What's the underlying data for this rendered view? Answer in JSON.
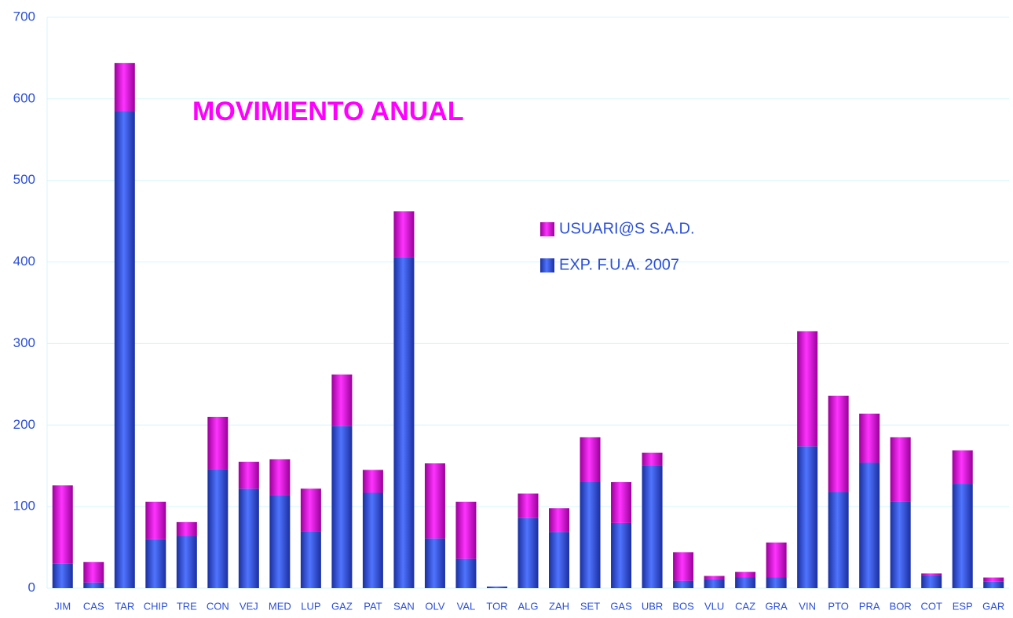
{
  "chart_data": {
    "type": "stacked_bar",
    "title": "MOVIMIENTO ANUAL",
    "categories": [
      "JIM",
      "CAS",
      "TAR",
      "CHIP",
      "TRE",
      "CON",
      "VEJ",
      "MED",
      "LUP",
      "GAZ",
      "PAT",
      "SAN",
      "OLV",
      "VAL",
      "TOR",
      "ALG",
      "ZAH",
      "SET",
      "GAS",
      "UBR",
      "BOS",
      "VLU",
      "CAZ",
      "GRA",
      "VIN",
      "PTO",
      "PRA",
      "BOR",
      "COT",
      "ESP",
      "GAR"
    ],
    "series": [
      {
        "name": "EXP. F.U.A. 2007",
        "color": "#2f52e0",
        "values": [
          30,
          7,
          585,
          60,
          64,
          146,
          122,
          114,
          70,
          199,
          117,
          406,
          61,
          36,
          2,
          86,
          69,
          130,
          80,
          151,
          9,
          11,
          13,
          13,
          174,
          118,
          154,
          106,
          16,
          128,
          8
        ]
      },
      {
        "name": "USUARI@S S.A.D.",
        "color": "#e600e6",
        "values": [
          96,
          25,
          59,
          46,
          17,
          64,
          33,
          44,
          52,
          63,
          28,
          56,
          92,
          70,
          0,
          30,
          29,
          55,
          50,
          15,
          35,
          4,
          7,
          43,
          141,
          118,
          60,
          79,
          2,
          41,
          5
        ]
      }
    ],
    "ylim": [
      0,
      700
    ],
    "yticks": [
      0,
      100,
      200,
      300,
      400,
      500,
      600,
      700
    ],
    "grid": true,
    "legend": "right"
  }
}
